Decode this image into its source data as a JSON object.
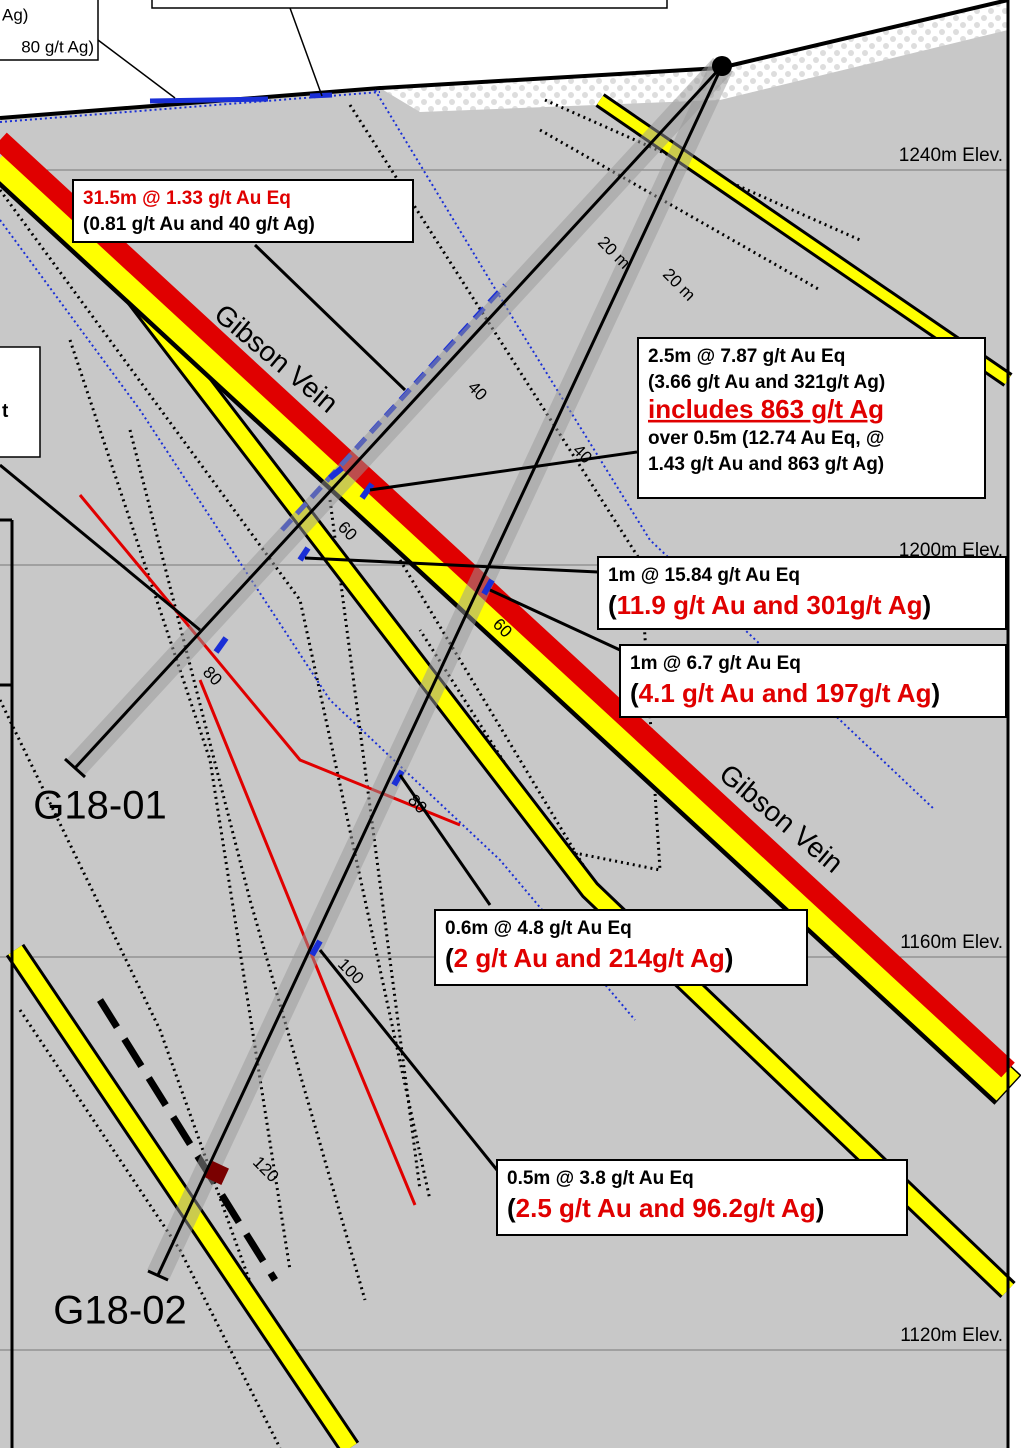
{
  "surface_notes": {
    "line1": "Ag)",
    "line2": "80 g/t Ag)"
  },
  "side_note": "t",
  "elevations": [
    "1240m Elev.",
    "1200m Elev.",
    "1160m Elev.",
    "1120m Elev."
  ],
  "vein_labels": [
    "Gibson Vein",
    "Gibson Vein"
  ],
  "holes": [
    {
      "name": "G18-01",
      "depths": [
        "20 m",
        "40",
        "60",
        "80"
      ]
    },
    {
      "name": "G18-02",
      "depths": [
        "20 m",
        "40",
        "60",
        "80",
        "100",
        "120"
      ]
    }
  ],
  "callouts": [
    {
      "lines": [
        {
          "text": "31.5m @ 1.33 g/t Au Eq",
          "style": "red"
        },
        {
          "text": "(0.81 g/t Au  and 40 g/t Ag)",
          "style": "plain"
        }
      ]
    },
    {
      "lines": [
        {
          "text": "2.5m @ 7.87 g/t Au Eq",
          "style": "plain"
        },
        {
          "text": "(3.66 g/t Au and 321g/t Ag)",
          "style": "plain"
        },
        {
          "text": "includes 863 g/t Ag",
          "style": "underline"
        },
        {
          "text": "over 0.5m (12.74 Au Eq, @",
          "style": "plain"
        },
        {
          "text": "1.43 g/t  Au and 863 g/t Ag)",
          "style": "plain"
        }
      ]
    },
    {
      "lines": [
        {
          "text": "1m @ 15.84 g/t Au Eq",
          "style": "plain"
        },
        {
          "open": "(",
          "text": "11.9 g/t Au and 301g/t Ag",
          "close": ")",
          "style": "big"
        }
      ]
    },
    {
      "lines": [
        {
          "text": "1m @ 6.7 g/t Au Eq",
          "style": "plain"
        },
        {
          "open": "(",
          "text": "4.1 g/t Au and 197g/t Ag",
          "close": ")",
          "style": "big"
        }
      ]
    },
    {
      "lines": [
        {
          "text": "0.6m @ 4.8 g/t Au Eq",
          "style": "plain"
        },
        {
          "open": "(",
          "text": "2 g/t Au and 214g/t Ag",
          "close": ")",
          "style": "big"
        }
      ]
    },
    {
      "lines": [
        {
          "text": "0.5m @ 3.8 g/t Au Eq",
          "style": "plain"
        },
        {
          "open": "(",
          "text": "2.5 g/t Au and 96.2g/t Ag",
          "close": ")",
          "style": "big"
        }
      ]
    }
  ]
}
